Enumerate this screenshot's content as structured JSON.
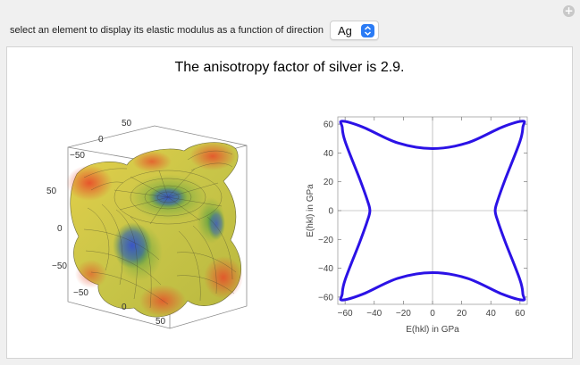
{
  "control": {
    "label": "select an element to display its elastic modulus as a function of direction",
    "selected": "Ag"
  },
  "title": "The anisotropy factor of silver is 2.9.",
  "surface3d": {
    "top_ticks": [
      "50",
      "0",
      "−50"
    ],
    "left_ticks": [
      "50",
      "0",
      "−50"
    ],
    "bottom_ticks": [
      "−50",
      "0",
      "50"
    ]
  },
  "chart_data": {
    "type": "line",
    "curve": "polar plot of Young's modulus E(hkl)",
    "xlabel": "E(hkl) in GPa",
    "ylabel": "E(hkl) in GPa",
    "xlim": [
      -65,
      65
    ],
    "ylim": [
      -65,
      65
    ],
    "xticks": [
      "−60",
      "−40",
      "−20",
      "0",
      "20",
      "40",
      "60"
    ],
    "yticks": [
      "60",
      "40",
      "20",
      "0",
      "−20",
      "−40",
      "−60"
    ],
    "series": [
      {
        "color": "#2b12e6",
        "x": [
          0,
          24,
          48,
          62,
          62,
          60,
          50,
          45,
          43
        ],
        "y": [
          43,
          47,
          58,
          62,
          58,
          48,
          22,
          8,
          0
        ],
        "symmetry": "mirrored in both axes"
      }
    ]
  },
  "colors": {
    "accent": "#2a7bf5",
    "curve": "#2b12e6",
    "frame": "#a0a0a0"
  }
}
